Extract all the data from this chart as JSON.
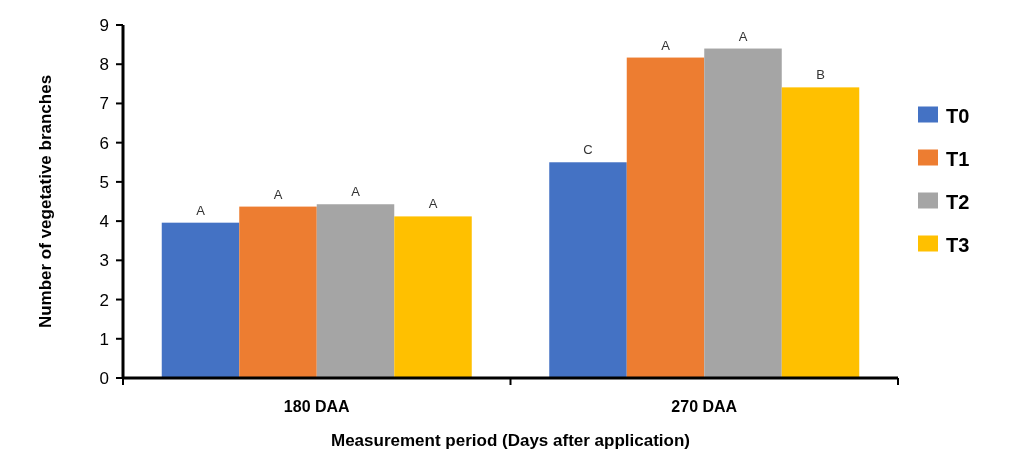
{
  "chart_data": {
    "type": "bar",
    "xlabel": "Measurement period (Days after application)",
    "ylabel": "Number of vegetative branches",
    "categories": [
      "180 DAA",
      "270 DAA"
    ],
    "series": [
      {
        "name": "T0",
        "color": "#4472c4",
        "values": [
          3.96,
          5.5
        ]
      },
      {
        "name": "T1",
        "color": "#ed7d31",
        "values": [
          4.37,
          8.17
        ]
      },
      {
        "name": "T2",
        "color": "#a5a5a5",
        "values": [
          4.43,
          8.4
        ]
      },
      {
        "name": "T3",
        "color": "#ffc000",
        "values": [
          4.12,
          7.41
        ]
      }
    ],
    "ylim": [
      0,
      9
    ],
    "yticks": [
      0,
      1,
      2,
      3,
      4,
      5,
      6,
      7,
      8,
      9
    ],
    "legend": "right",
    "grid": false,
    "annotations": [
      "A",
      "A",
      "A",
      "A",
      "C",
      "A",
      "A",
      "B"
    ]
  }
}
